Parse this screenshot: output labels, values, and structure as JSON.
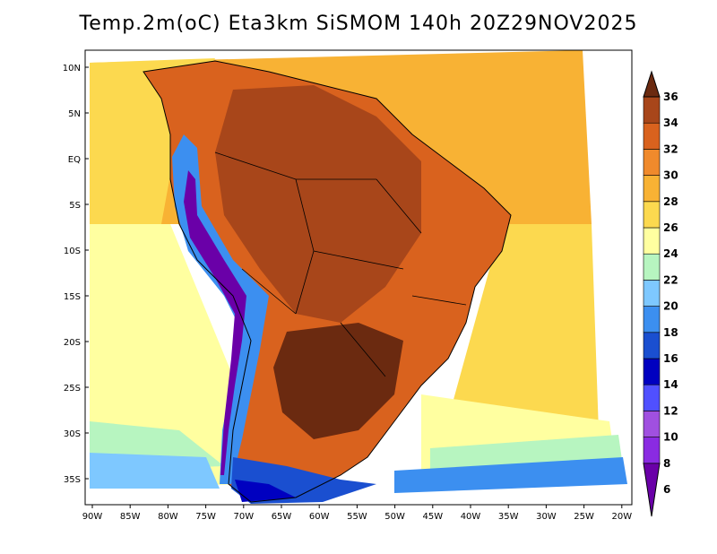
{
  "title": "Temp.2m(oC) Eta3km SiSMOM 140h 20Z29NOV2025",
  "lat_labels": [
    "10N",
    "5N",
    "EQ",
    "5S",
    "10S",
    "15S",
    "20S",
    "25S",
    "30S",
    "35S"
  ],
  "lon_labels": [
    "90W",
    "85W",
    "80W",
    "75W",
    "70W",
    "65W",
    "60W",
    "55W",
    "50W",
    "45W",
    "40W",
    "35W",
    "30W",
    "25W",
    "20W"
  ],
  "colorbar": {
    "labels": [
      "6",
      "8",
      "10",
      "12",
      "14",
      "16",
      "18",
      "20",
      "22",
      "24",
      "26",
      "28",
      "30",
      "32",
      "34",
      "36"
    ],
    "colors": [
      "#6a00a8",
      "#8a2be2",
      "#a050e0",
      "#5050ff",
      "#0000c0",
      "#1a4fd0",
      "#3c8ff0",
      "#7ec8ff",
      "#b7f5c0",
      "#ffffa0",
      "#fcd94f",
      "#f8b234",
      "#f08a2c",
      "#d9621e",
      "#a8461a",
      "#6b2a10"
    ]
  },
  "fills": {
    "ocean_warm": "#f8b234",
    "ocean_mild": "#fcd94f",
    "ocean_cool": "#ffffa0",
    "ocean_green": "#b7f5c0",
    "land_hot": "#d9621e",
    "land_very_hot": "#a8461a",
    "land_extreme": "#6b2a10",
    "andes_cold": "#3c8ff0",
    "andes_coldest": "#6a00a8",
    "south_cold": "#1a4fd0"
  }
}
